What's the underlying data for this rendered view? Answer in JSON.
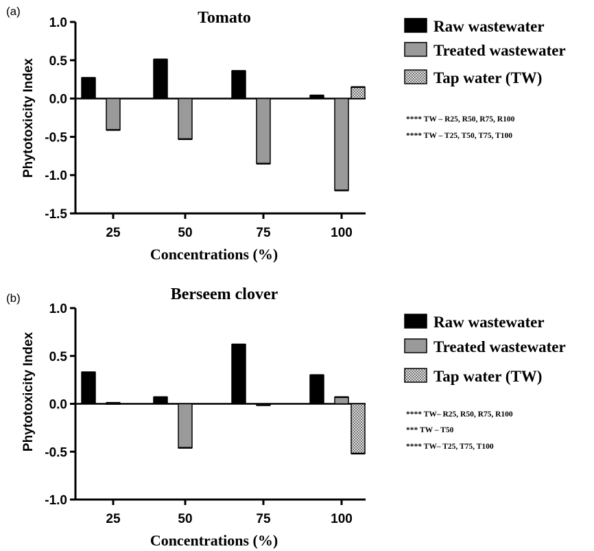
{
  "chart_data": [
    {
      "panel_label": "(a)",
      "type": "bar",
      "title": "Tomato",
      "xlabel": "Concentrations (%)",
      "ylabel": "Phytotoxicity Index",
      "ylim": [
        -1.5,
        1.0
      ],
      "yticks": [
        "1.0",
        "0.5",
        "0.0",
        "-0.5",
        "-1.0",
        "-1.5"
      ],
      "categories": [
        "25",
        "50",
        "75",
        "100"
      ],
      "grid": false,
      "legend_position": "right",
      "series": [
        {
          "name": "Raw wastewater",
          "values": [
            0.27,
            0.51,
            0.36,
            0.04
          ],
          "color": "#000000"
        },
        {
          "name": "Treated wastewater",
          "values": [
            -0.41,
            -0.53,
            -0.85,
            -1.2
          ],
          "color": "#9a9a9a"
        },
        {
          "name": "Tap water (TW)",
          "values": [
            null,
            null,
            null,
            0.15
          ],
          "color": "#c8c8c8",
          "pattern": "checker"
        }
      ],
      "annotations": [
        "**** TW – R25, R50, R75, R100",
        "**** TW – T25, T50, T75, T100"
      ]
    },
    {
      "panel_label": "(b)",
      "type": "bar",
      "title": "Berseem clover",
      "xlabel": "Concentrations (%)",
      "ylabel": "Phytotoxicity Index",
      "ylim": [
        -1.0,
        1.0
      ],
      "yticks": [
        "1.0",
        "0.5",
        "0.0",
        "-0.5",
        "-1.0"
      ],
      "categories": [
        "25",
        "50",
        "75",
        "100"
      ],
      "grid": false,
      "legend_position": "right",
      "series": [
        {
          "name": "Raw wastewater",
          "values": [
            0.33,
            0.07,
            0.62,
            0.3
          ],
          "color": "#000000"
        },
        {
          "name": "Treated wastewater",
          "values": [
            0.01,
            -0.46,
            -0.01,
            0.07
          ],
          "color": "#9a9a9a"
        },
        {
          "name": "Tap water (TW)",
          "values": [
            null,
            null,
            null,
            -0.52
          ],
          "color": "#c8c8c8",
          "pattern": "checker"
        }
      ],
      "annotations": [
        "**** TW– R25, R50, R75, R100",
        "*** TW – T50",
        "**** TW– T25, T75, T100"
      ]
    }
  ]
}
